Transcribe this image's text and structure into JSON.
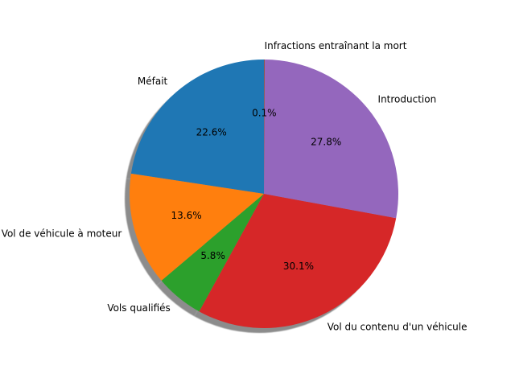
{
  "chart_data": {
    "type": "pie",
    "title": "",
    "labels": [
      "Méfait",
      "Vol de véhicule à moteur",
      "Vols qualifiés",
      "Vol du contenu d'un véhicule",
      "Introduction",
      "Infractions entraînant la mort"
    ],
    "values": [
      22.6,
      13.6,
      5.8,
      30.1,
      27.8,
      0.1
    ],
    "percent_labels": [
      "22.6%",
      "13.6%",
      "5.8%",
      "30.1%",
      "27.8%",
      "0.1%"
    ],
    "colors": [
      "#1f77b4",
      "#ff7f0e",
      "#2ca02c",
      "#d62728",
      "#9467bd",
      "#8c564b"
    ],
    "start_angle": 90,
    "direction": "counterclockwise",
    "shadow": true
  }
}
